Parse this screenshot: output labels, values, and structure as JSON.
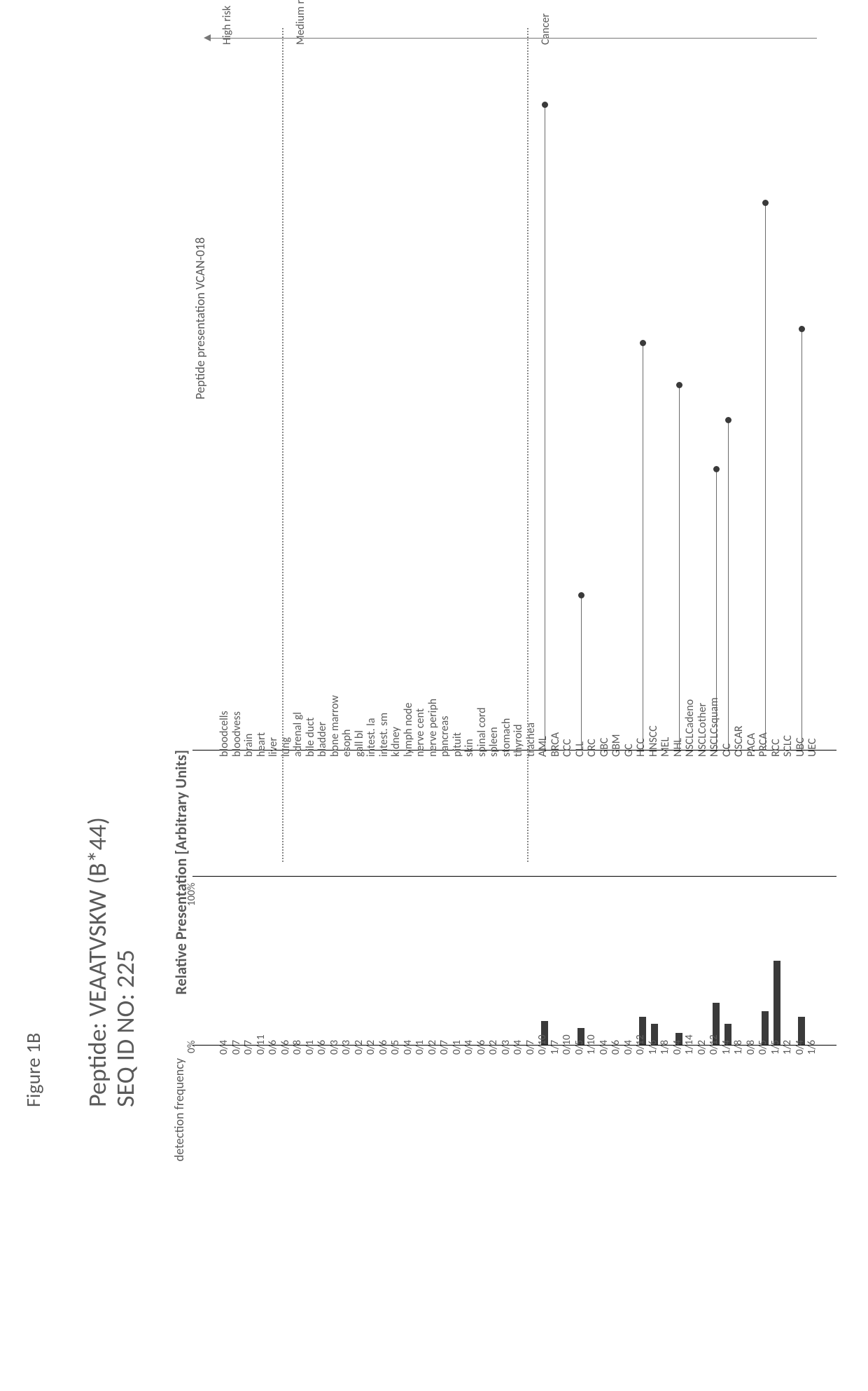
{
  "figure_label": "Figure 1B",
  "title": {
    "line1": "Peptide: VEAATVSKW (B*44)",
    "line2": "SEQ ID NO: 225"
  },
  "chart_title": "Peptide presentation VCAN-018",
  "y_axis_label": "Relative Presentation [Arbitrary Units]",
  "freq_axis_label": "detection frequency",
  "freq_ticks": [
    "100%",
    "0%"
  ],
  "colors": {
    "background": "#ffffff",
    "text": "#5a5a5a",
    "axis": "#000000",
    "lollipop_line": "#6a6a6a",
    "lollipop_dot": "#3a3a3a",
    "bar": "#3a3a3a",
    "sep": "#888888"
  },
  "plot": {
    "lollipop_ymax": 100,
    "freq_max_pct": 100,
    "col_width": 17.5,
    "label_gap": 180,
    "freq_bar_width": 10
  },
  "groups": [
    {
      "name": "High risk",
      "start": 0,
      "end": 5
    },
    {
      "name": "Medium risk",
      "start": 6,
      "end": 25
    },
    {
      "name": "Cancer",
      "start": 26,
      "end": 49
    }
  ],
  "categories": [
    {
      "label": "bloodcells",
      "value": 0,
      "freq_num": 0,
      "freq_den": 4
    },
    {
      "label": "bloodvess",
      "value": 0,
      "freq_num": 0,
      "freq_den": 7
    },
    {
      "label": "brain",
      "value": 0,
      "freq_num": 0,
      "freq_den": 7
    },
    {
      "label": "heart",
      "value": 0,
      "freq_num": 0,
      "freq_den": 11
    },
    {
      "label": "liver",
      "value": 0,
      "freq_num": 0,
      "freq_den": 6
    },
    {
      "label": "lung",
      "value": 0,
      "freq_num": 0,
      "freq_den": 6
    },
    {
      "label": "adrenal gl",
      "value": 0,
      "freq_num": 0,
      "freq_den": 8
    },
    {
      "label": "bile duct",
      "value": 0,
      "freq_num": 0,
      "freq_den": 1
    },
    {
      "label": "bladder",
      "value": 0,
      "freq_num": 0,
      "freq_den": 6
    },
    {
      "label": "bone marrow",
      "value": 0,
      "freq_num": 0,
      "freq_den": 3
    },
    {
      "label": "esoph",
      "value": 0,
      "freq_num": 0,
      "freq_den": 3
    },
    {
      "label": "gall bl",
      "value": 0,
      "freq_num": 0,
      "freq_den": 2
    },
    {
      "label": "intest. la",
      "value": 0,
      "freq_num": 0,
      "freq_den": 2
    },
    {
      "label": "intest. sm",
      "value": 0,
      "freq_num": 0,
      "freq_den": 6
    },
    {
      "label": "kidney",
      "value": 0,
      "freq_num": 0,
      "freq_den": 5
    },
    {
      "label": "lymph node",
      "value": 0,
      "freq_num": 0,
      "freq_den": 4
    },
    {
      "label": "nerve cent",
      "value": 0,
      "freq_num": 0,
      "freq_den": 1
    },
    {
      "label": "nerve periph",
      "value": 0,
      "freq_num": 0,
      "freq_den": 2
    },
    {
      "label": "pancreas",
      "value": 0,
      "freq_num": 0,
      "freq_den": 7
    },
    {
      "label": "pituit",
      "value": 0,
      "freq_num": 0,
      "freq_den": 1
    },
    {
      "label": "skin",
      "value": 0,
      "freq_num": 0,
      "freq_den": 4
    },
    {
      "label": "spinal cord",
      "value": 0,
      "freq_num": 0,
      "freq_den": 6
    },
    {
      "label": "spleen",
      "value": 0,
      "freq_num": 0,
      "freq_den": 2
    },
    {
      "label": "stomach",
      "value": 0,
      "freq_num": 0,
      "freq_den": 3
    },
    {
      "label": "thyroid",
      "value": 0,
      "freq_num": 0,
      "freq_den": 4
    },
    {
      "label": "trachea",
      "value": 0,
      "freq_num": 0,
      "freq_den": 7
    },
    {
      "label": "AML",
      "value": 0,
      "freq_num": 0,
      "freq_den": 10
    },
    {
      "label": "BRCA",
      "value": 92,
      "freq_num": 1,
      "freq_den": 7
    },
    {
      "label": "CCC",
      "value": 0,
      "freq_num": 0,
      "freq_den": 10
    },
    {
      "label": "CLL",
      "value": 0,
      "freq_num": 0,
      "freq_den": 5
    },
    {
      "label": "CRC",
      "value": 22,
      "freq_num": 1,
      "freq_den": 10
    },
    {
      "label": "GBC",
      "value": 0,
      "freq_num": 0,
      "freq_den": 4
    },
    {
      "label": "GBM",
      "value": 0,
      "freq_num": 0,
      "freq_den": 6
    },
    {
      "label": "GC",
      "value": 0,
      "freq_num": 0,
      "freq_den": 4
    },
    {
      "label": "HCC",
      "value": 0,
      "freq_num": 0,
      "freq_den": 12
    },
    {
      "label": "HNSCC",
      "value": 58,
      "freq_num": 1,
      "freq_den": 6
    },
    {
      "label": "MEL",
      "value": 0,
      "freq_num": 1,
      "freq_den": 8
    },
    {
      "label": "NHL",
      "value": 0,
      "freq_num": 0,
      "freq_den": 4
    },
    {
      "label": "NSCLCadeno",
      "value": 52,
      "freq_num": 1,
      "freq_den": 14
    },
    {
      "label": "NSCLCother",
      "value": 0,
      "freq_num": 0,
      "freq_den": 2
    },
    {
      "label": "NSCLCsquam",
      "value": 0,
      "freq_num": 0,
      "freq_den": 12
    },
    {
      "label": "OC",
      "value": 40,
      "freq_num": 1,
      "freq_den": 4
    },
    {
      "label": "OSCAR",
      "value": 47,
      "freq_num": 1,
      "freq_den": 8
    },
    {
      "label": "PACA",
      "value": 0,
      "freq_num": 0,
      "freq_den": 8
    },
    {
      "label": "PRCA",
      "value": 0,
      "freq_num": 0,
      "freq_den": 5
    },
    {
      "label": "RCC",
      "value": 78,
      "freq_num": 1,
      "freq_den": 5
    },
    {
      "label": "SCLC",
      "value": 0,
      "freq_num": 1,
      "freq_den": 2
    },
    {
      "label": "UBC",
      "value": 0,
      "freq_num": 0,
      "freq_den": 4
    },
    {
      "label": "UEC",
      "value": 60,
      "freq_num": 1,
      "freq_den": 6
    }
  ]
}
